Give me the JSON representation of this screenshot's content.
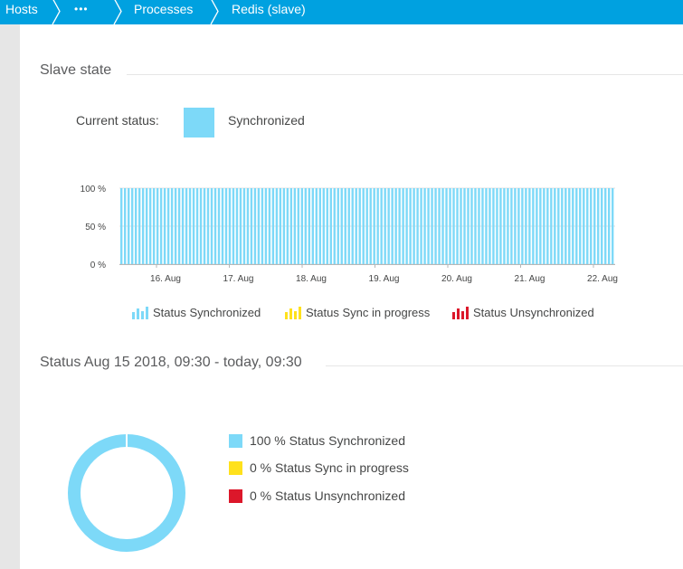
{
  "breadcrumb": {
    "items": [
      {
        "label": "Hosts"
      },
      {
        "label": "•••"
      },
      {
        "label": "Processes"
      },
      {
        "label": "Redis (slave)"
      }
    ]
  },
  "slave_state": {
    "title": "Slave state",
    "current_status_label": "Current status:",
    "current_status_value": "Synchronized",
    "status_color": "#7dd9f8"
  },
  "chart_data": {
    "type": "bar",
    "x_tick_labels": [
      "16. Aug",
      "17. Aug",
      "18. Aug",
      "19. Aug",
      "20. Aug",
      "21. Aug",
      "22. Aug"
    ],
    "y_tick_labels": [
      "100 %",
      "50 %",
      "0 %"
    ],
    "ylim": [
      0,
      100
    ],
    "bar_count": 137,
    "series": [
      {
        "name": "Status Synchronized",
        "color": "#7dd9f8",
        "value": 100
      },
      {
        "name": "Status Sync in progress",
        "color": "#ffe11c",
        "value": 0
      },
      {
        "name": "Status Unsynchronized",
        "color": "#dc172a",
        "value": 0
      }
    ]
  },
  "summary": {
    "title": "Status Aug 15 2018, 09:30 - today, 09:30",
    "items": [
      {
        "percent": "100 %",
        "label": "Status Synchronized",
        "color": "#7dd9f8",
        "value": 100
      },
      {
        "percent": "0 %",
        "label": "Status Sync in progress",
        "color": "#ffe11c",
        "value": 0
      },
      {
        "percent": "0 %",
        "label": "Status Unsynchronized",
        "color": "#dc172a",
        "value": 0
      }
    ]
  }
}
